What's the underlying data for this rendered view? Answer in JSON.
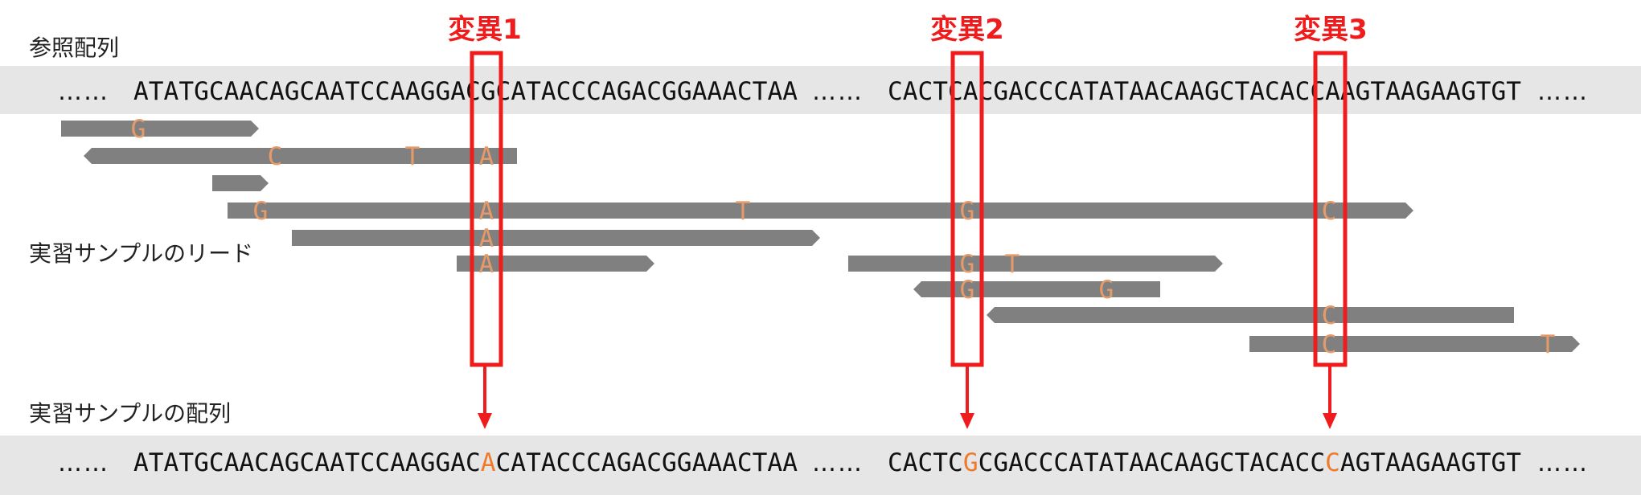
{
  "labels": {
    "reference": "参照配列",
    "reads": "実習サンプルのリード",
    "sample": "実習サンプルの配列"
  },
  "ellipsis": "……",
  "reference_sequence": {
    "segment1": "ATATGCAACAGCAATCCAAGGACGCATACCCAGACGGAAACTAA",
    "segment2": "CACTCACGACCCATATAACAAGCTACACCAAGTAAGAAGTGT"
  },
  "sample_sequence": {
    "segment1_before": "ATATGCAACAGCAATCCAAGGAC",
    "segment1_variant": "A",
    "segment1_after": "CATACCCAGACGGAAACTAA",
    "segment2_before": "CACTC",
    "segment2_variant1": "G",
    "segment2_mid": "CGACCCATATAACAAGCTACACC",
    "segment2_variant2": "C",
    "segment2_after": "AGTAAGAAGTGT"
  },
  "variants": [
    "変異1",
    "変異2",
    "変異3"
  ],
  "colors": {
    "highlight_red": "#ee1c1c",
    "read_gray": "#808080",
    "mismatch_orange": "#e69a67",
    "variant_orange": "#ee7a2a",
    "band_gray": "#e6e6e6"
  },
  "reads": [
    {
      "dir": "right",
      "mismatches": [
        "G"
      ]
    },
    {
      "dir": "left",
      "mismatches": [
        "C",
        "T",
        "A"
      ]
    },
    {
      "dir": "right",
      "mismatches": []
    },
    {
      "dir": "right",
      "mismatches": [
        "G",
        "A",
        "T",
        "G",
        "C"
      ]
    },
    {
      "dir": "right",
      "mismatches": [
        "A"
      ]
    },
    {
      "dir": "right",
      "mismatches": [
        "A"
      ]
    },
    {
      "dir": "right",
      "mismatches": [
        "G",
        "T"
      ]
    },
    {
      "dir": "left",
      "mismatches": [
        "G",
        "G"
      ]
    },
    {
      "dir": "left",
      "mismatches": [
        "C"
      ]
    },
    {
      "dir": "right",
      "mismatches": [
        "C",
        "T"
      ]
    }
  ]
}
